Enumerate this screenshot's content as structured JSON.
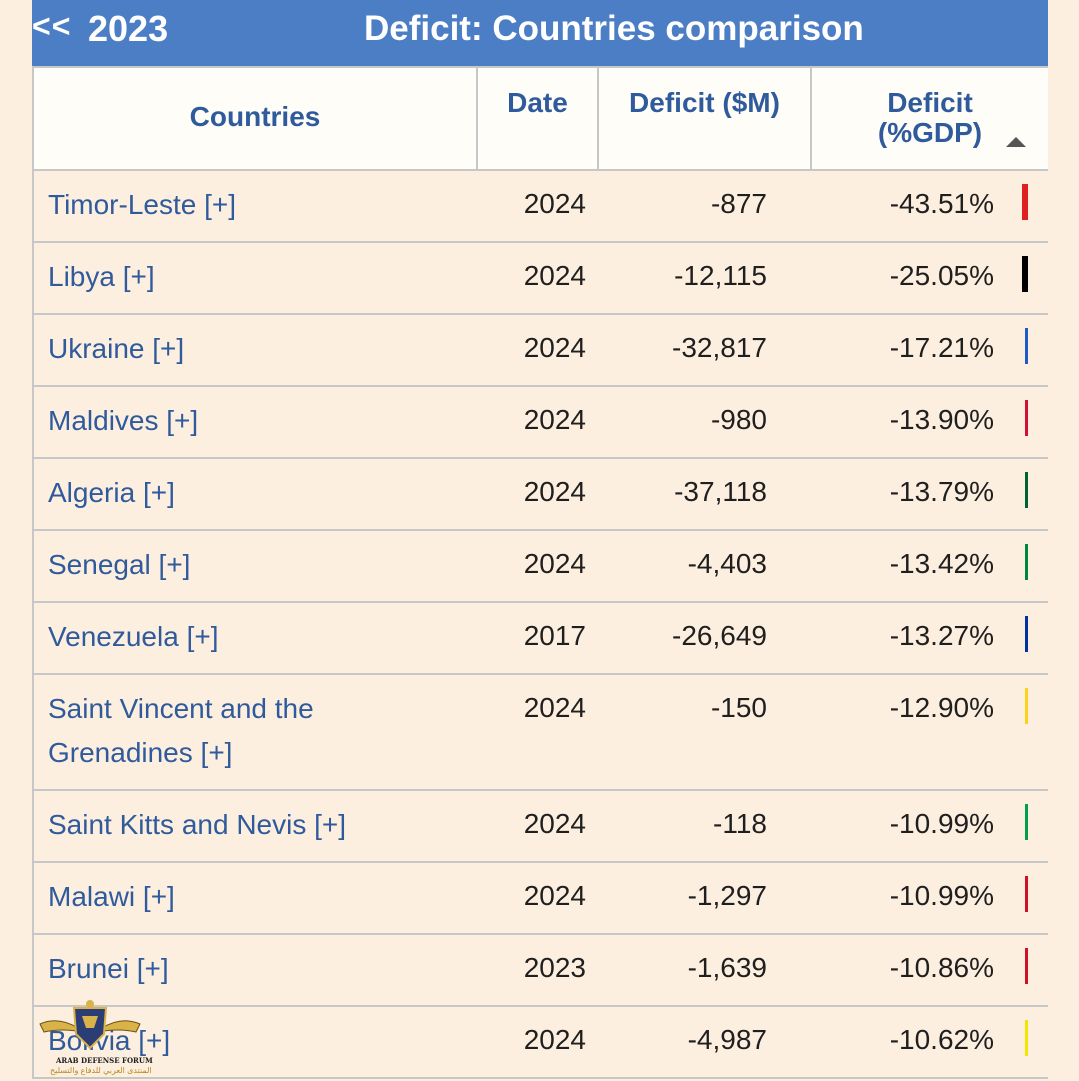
{
  "header": {
    "back_label": "<<",
    "year": "2023",
    "title": "Deficit: Countries comparison"
  },
  "table": {
    "columns": {
      "country": "Countries",
      "date": "Date",
      "deficit": "Deficit ($M)",
      "gdp_line1": "Deficit",
      "gdp_line2": "(%GDP)"
    },
    "sort_icon": "sort-ascending-triangle-icon",
    "rows": [
      {
        "country": "Timor-Leste [+]",
        "date": "2024",
        "deficit": "-877",
        "gdp": "-43.51%",
        "color": "#e02020"
      },
      {
        "country": "Libya [+]",
        "date": "2024",
        "deficit": "-12,115",
        "gdp": "-25.05%",
        "color": "#000000"
      },
      {
        "country": "Ukraine [+]",
        "date": "2024",
        "deficit": "-32,817",
        "gdp": "-17.21%",
        "color": "#1e5bc6"
      },
      {
        "country": "Maldives [+]",
        "date": "2024",
        "deficit": "-980",
        "gdp": "-13.90%",
        "color": "#d21034"
      },
      {
        "country": "Algeria [+]",
        "date": "2024",
        "deficit": "-37,118",
        "gdp": "-13.79%",
        "color": "#006233"
      },
      {
        "country": "Senegal [+]",
        "date": "2024",
        "deficit": "-4,403",
        "gdp": "-13.42%",
        "color": "#00853f"
      },
      {
        "country": "Venezuela [+]",
        "date": "2017",
        "deficit": "-26,649",
        "gdp": "-13.27%",
        "color": "#0033a0"
      },
      {
        "country": "Saint Vincent and the Grenadines [+]",
        "date": "2024",
        "deficit": "-150",
        "gdp": "-12.90%",
        "color": "#fcd116"
      },
      {
        "country": "Saint Kitts and Nevis [+]",
        "date": "2024",
        "deficit": "-118",
        "gdp": "-10.99%",
        "color": "#009e49"
      },
      {
        "country": "Malawi [+]",
        "date": "2024",
        "deficit": "-1,297",
        "gdp": "-10.99%",
        "color": "#ce1126"
      },
      {
        "country": "Brunei [+]",
        "date": "2023",
        "deficit": "-1,639",
        "gdp": "-10.86%",
        "color": "#cf1126"
      },
      {
        "country": "Bolivia [+]",
        "date": "2024",
        "deficit": "-4,987",
        "gdp": "-10.62%",
        "color": "#f4e400"
      }
    ]
  },
  "watermark": {
    "line1": "ARAB DEFENSE FORUM",
    "line2": "المنتدى العربي للدفاع والتسليح",
    "icon": "eagle-shield-logo-icon"
  }
}
